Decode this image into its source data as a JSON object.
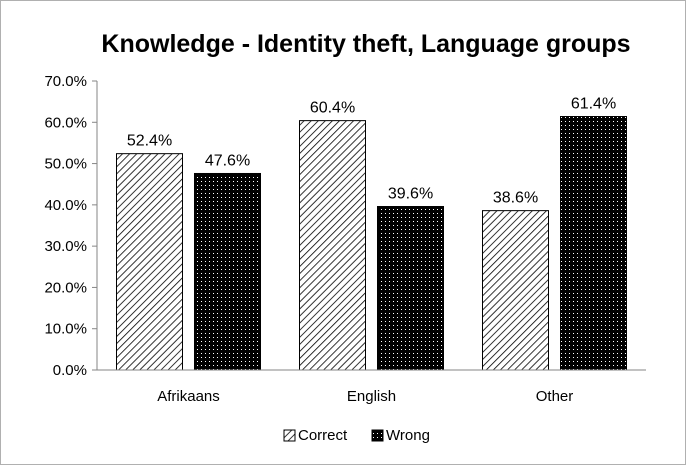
{
  "chart_data": {
    "type": "bar",
    "title": "Knowledge - Identity theft, Language groups",
    "xlabel": "",
    "ylabel": "",
    "categories": [
      "Afrikaans",
      "English",
      "Other"
    ],
    "series": [
      {
        "name": "Correct",
        "values": [
          52.4,
          60.4,
          38.6
        ],
        "labels": [
          "52.4%",
          "60.4%",
          "38.6%"
        ],
        "pattern": "diagonal-hatch",
        "color": "#000000"
      },
      {
        "name": "Wrong",
        "values": [
          47.6,
          39.6,
          61.4
        ],
        "labels": [
          "47.6%",
          "39.6%",
          "61.4%"
        ],
        "pattern": "dotted-black",
        "color": "#000000"
      }
    ],
    "ylim": [
      0,
      70
    ],
    "yticks": [
      "0.0%",
      "10.0%",
      "20.0%",
      "30.0%",
      "40.0%",
      "50.0%",
      "60.0%",
      "70.0%"
    ],
    "grid": false,
    "legend_position": "bottom"
  }
}
